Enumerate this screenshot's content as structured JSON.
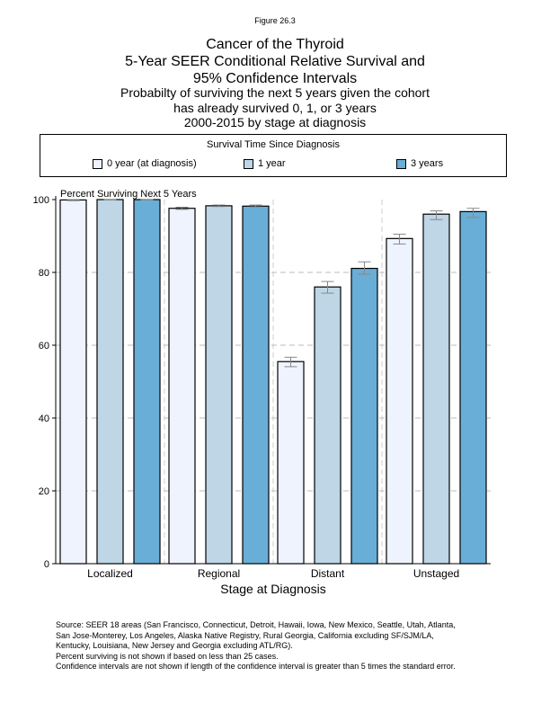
{
  "figure_label": "Figure 26.3",
  "title_lines": [
    "Cancer of the Thyroid",
    "5-Year SEER Conditional Relative Survival and",
    "95% Confidence Intervals"
  ],
  "subtitle_lines": [
    "Probabilty of surviving the next 5 years given the cohort",
    "has already survived 0, 1, or 3 years",
    "2000-2015 by stage at diagnosis"
  ],
  "source_lines": [
    "Source:  SEER 18 areas (San Francisco, Connecticut, Detroit, Hawaii, Iowa, New Mexico, Seattle, Utah, Atlanta,",
    "San Jose-Monterey, Los Angeles, Alaska Native Registry, Rural Georgia, California excluding SF/SJM/LA,",
    "Kentucky, Louisiana, New Jersey and Georgia excluding ATL/RG).",
    "Percent surviving is not shown if based on less than 25 cases.",
    "Confidence intervals are not shown if length of the confidence interval is greater than 5 times the standard error."
  ],
  "chart_data": {
    "type": "bar",
    "legend_title": "Survival Time Since Diagnosis",
    "legend_placement": "top",
    "ylabel": "Percent Surviving Next 5 Years",
    "xlabel": "Stage at Diagnosis",
    "ylim": [
      0,
      100
    ],
    "yticks": [
      0,
      20,
      40,
      60,
      80,
      100
    ],
    "grid": "dashed horizontal",
    "categories": [
      "Localized",
      "Regional",
      "Distant",
      "Unstaged"
    ],
    "series": [
      {
        "name": "0 year (at diagnosis)",
        "color": "#eef3fd",
        "values": [
          99.9,
          97.6,
          55.5,
          89.3
        ],
        "ci_low": [
          99.7,
          97.3,
          54.1,
          87.8
        ],
        "ci_high": [
          100,
          97.9,
          56.7,
          90.5
        ]
      },
      {
        "name": "1 year",
        "color": "#bed6e6",
        "values": [
          100,
          98.3,
          76.0,
          96.0
        ],
        "ci_low": [
          99.9,
          98.1,
          74.3,
          94.5
        ],
        "ci_high": [
          100,
          98.5,
          77.5,
          96.9
        ]
      },
      {
        "name": "3 years",
        "color": "#69aed6",
        "values": [
          100,
          98.2,
          81.1,
          96.7
        ],
        "ci_low": [
          99.9,
          98.0,
          79.5,
          95.1
        ],
        "ci_high": [
          100,
          98.5,
          82.9,
          97.6
        ]
      }
    ]
  }
}
